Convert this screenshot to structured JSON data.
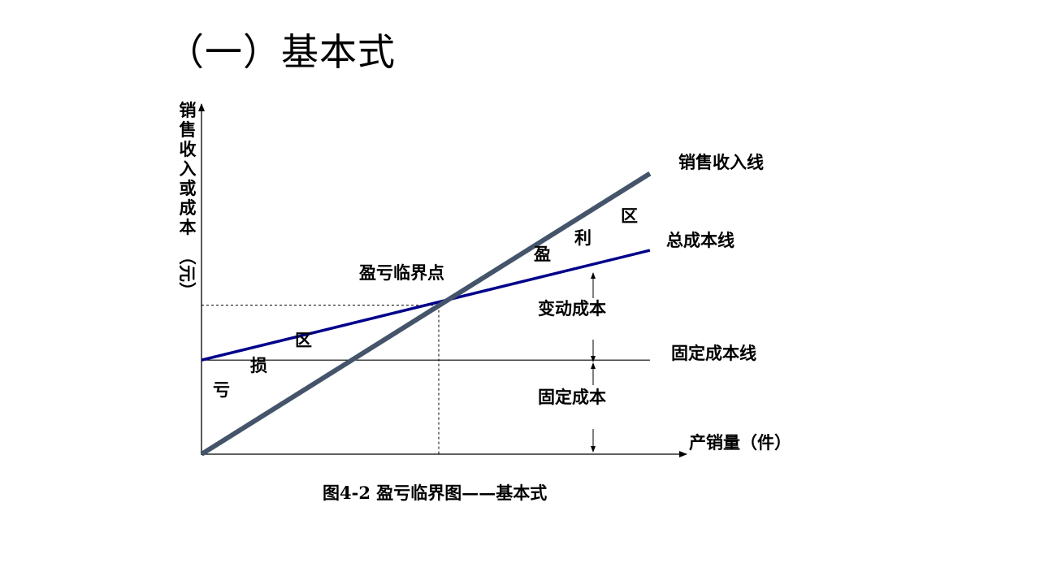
{
  "slide": {
    "title": "（一）基本式"
  },
  "figure": {
    "y_axis_label": [
      "销",
      "售",
      "收",
      "入",
      "或",
      "成",
      "本",
      "（元）"
    ],
    "x_axis_label": "产销量（件）",
    "labels": {
      "sales_revenue_line": "销售收入线",
      "total_cost_line": "总成本线",
      "fixed_cost_line": "固定成本线",
      "breakeven_point": "盈亏临界点",
      "variable_cost": "变动成本",
      "fixed_cost": "固定成本"
    },
    "profit_zone": [
      "盈",
      "利",
      "区"
    ],
    "loss_zone": [
      "亏",
      "损",
      "区"
    ],
    "caption": "图4-2  盈亏临界图——基本式",
    "colors": {
      "sales_line": "#44546a",
      "cost_line": "#00008b",
      "axis": "#000000"
    }
  },
  "chart_data": {
    "type": "line",
    "title": "",
    "xlabel": "产销量（件）",
    "ylabel": "销售收入或成本（元）",
    "series": [
      {
        "name": "销售收入线",
        "x": [
          0,
          1.89
        ],
        "y": [
          0,
          1.79
        ]
      },
      {
        "name": "总成本线",
        "x": [
          0,
          1.89
        ],
        "y": [
          0.6,
          1.3
        ]
      },
      {
        "name": "固定成本线",
        "x": [
          0,
          1.89
        ],
        "y": [
          0.6,
          0.6
        ]
      }
    ],
    "breakeven": {
      "x": 1.0,
      "y": 0.95
    },
    "xlim": [
      0,
      2.0
    ],
    "ylim": [
      0,
      2.2
    ]
  }
}
